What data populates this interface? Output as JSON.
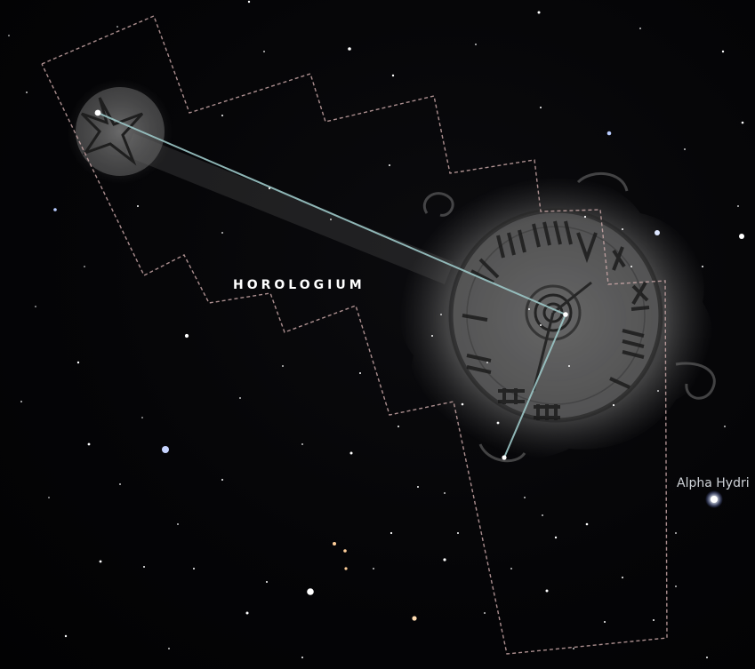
{
  "constellation": {
    "name": "HOROLOGIUM"
  },
  "labels": {
    "alpha_hydri": "Alpha Hydri"
  },
  "colors": {
    "background": "#000000",
    "boundary": "#c9a7a7",
    "stick_figure": "#9cc7c7",
    "art": "#bdbdbd",
    "star_white": "#ffffff",
    "star_blue": "#b8ccff",
    "star_orange": "#ffcf9a"
  }
}
